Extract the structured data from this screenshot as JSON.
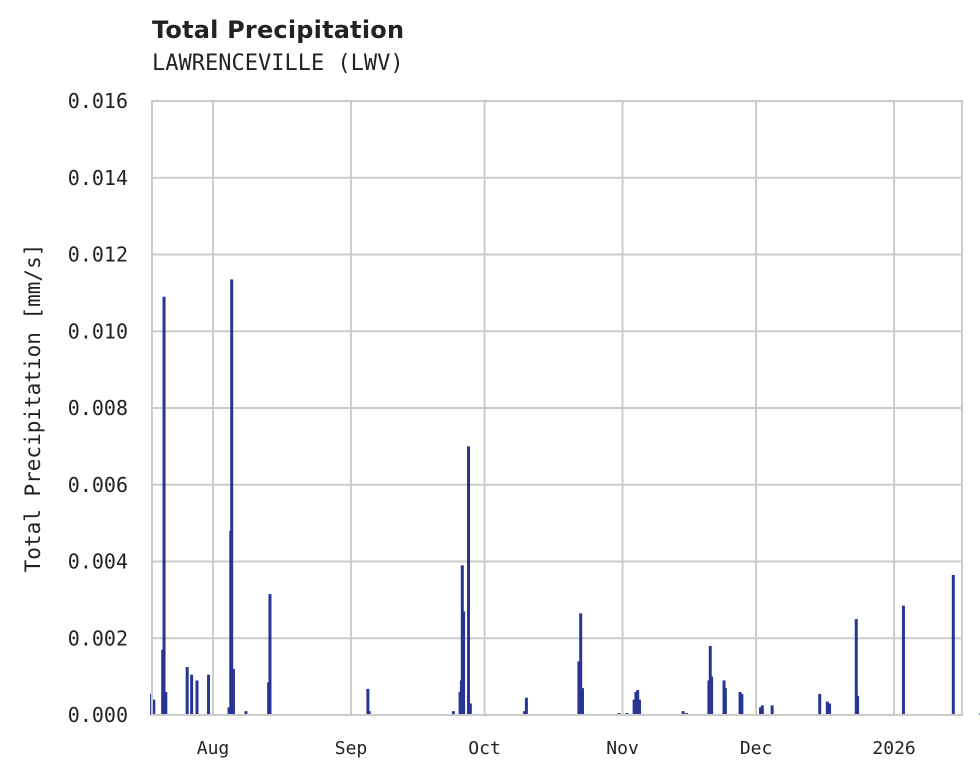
{
  "chart_data": {
    "type": "bar",
    "title": "Total Precipitation",
    "subtitle": "LAWRENCEVILLE (LWV)",
    "xlabel": "",
    "ylabel": "Total Precipitation [mm/s]",
    "ylim": [
      0,
      0.016
    ],
    "yticks": [
      "0.000",
      "0.002",
      "0.004",
      "0.006",
      "0.008",
      "0.010",
      "0.012",
      "0.014",
      "0.016"
    ],
    "xticks": [
      "Aug",
      "Sep",
      "Oct",
      "Nov",
      "Dec",
      "2026"
    ],
    "x_range_days": [
      -14,
      184
    ],
    "x_origin": "2025-08-01",
    "grid": true,
    "legend": null,
    "color": "#283593",
    "series": [
      {
        "name": "Total Precipitation",
        "points": [
          {
            "day": -13.8,
            "value": 0.00055
          },
          {
            "day": -13.3,
            "value": 0.0004
          },
          {
            "day": -11.3,
            "value": 0.0017
          },
          {
            "day": -11.0,
            "value": 0.0109
          },
          {
            "day": -10.6,
            "value": 0.0006
          },
          {
            "day": -5.8,
            "value": 0.00125
          },
          {
            "day": -4.8,
            "value": 0.00105
          },
          {
            "day": -3.6,
            "value": 0.0009
          },
          {
            "day": -1.0,
            "value": 0.00105
          },
          {
            "day": 3.6,
            "value": 0.0002
          },
          {
            "day": 4.0,
            "value": 0.0048
          },
          {
            "day": 4.2,
            "value": 0.01135
          },
          {
            "day": 4.6,
            "value": 0.0012
          },
          {
            "day": 7.4,
            "value": 0.0001
          },
          {
            "day": 12.5,
            "value": 0.00085
          },
          {
            "day": 12.8,
            "value": 0.00315
          },
          {
            "day": 34.8,
            "value": 0.00068
          },
          {
            "day": 35.1,
            "value": 0.0001
          },
          {
            "day": 54.0,
            "value": 0.0001
          },
          {
            "day": 55.5,
            "value": 0.0006
          },
          {
            "day": 55.8,
            "value": 0.0009
          },
          {
            "day": 56.0,
            "value": 0.0039
          },
          {
            "day": 56.3,
            "value": 0.0027
          },
          {
            "day": 57.4,
            "value": 0.007
          },
          {
            "day": 57.8,
            "value": 0.0003
          },
          {
            "day": 70.0,
            "value": 0.0001
          },
          {
            "day": 70.4,
            "value": 0.00045
          },
          {
            "day": 82.2,
            "value": 0.0014
          },
          {
            "day": 82.6,
            "value": 0.00265
          },
          {
            "day": 83.0,
            "value": 0.0007
          },
          {
            "day": 84.0,
            "value": 0.0
          },
          {
            "day": 91.2,
            "value": 5e-05
          },
          {
            "day": 93.0,
            "value": 5e-05
          },
          {
            "day": 94.6,
            "value": 0.0004
          },
          {
            "day": 95.0,
            "value": 0.0006
          },
          {
            "day": 95.4,
            "value": 0.00065
          },
          {
            "day": 95.8,
            "value": 0.0004
          },
          {
            "day": 105.6,
            "value": 0.0001
          },
          {
            "day": 106.4,
            "value": 5e-05
          },
          {
            "day": 111.4,
            "value": 0.0009
          },
          {
            "day": 111.7,
            "value": 0.0018
          },
          {
            "day": 112.0,
            "value": 0.001
          },
          {
            "day": 114.8,
            "value": 0.0009
          },
          {
            "day": 115.1,
            "value": 0.0007
          },
          {
            "day": 118.4,
            "value": 0.0006
          },
          {
            "day": 118.8,
            "value": 0.00055
          },
          {
            "day": 123.0,
            "value": 0.0002
          },
          {
            "day": 123.4,
            "value": 0.00025
          },
          {
            "day": 125.6,
            "value": 0.00025
          },
          {
            "day": 136.3,
            "value": 0.00055
          },
          {
            "day": 138.0,
            "value": 0.00035
          },
          {
            "day": 138.5,
            "value": 0.0003
          },
          {
            "day": 144.5,
            "value": 0.0025
          },
          {
            "day": 144.8,
            "value": 0.0005
          },
          {
            "day": 155.1,
            "value": 0.00285
          },
          {
            "day": 166.3,
            "value": 0.00365
          },
          {
            "day": 172.5,
            "value": 5e-05
          }
        ]
      }
    ]
  }
}
